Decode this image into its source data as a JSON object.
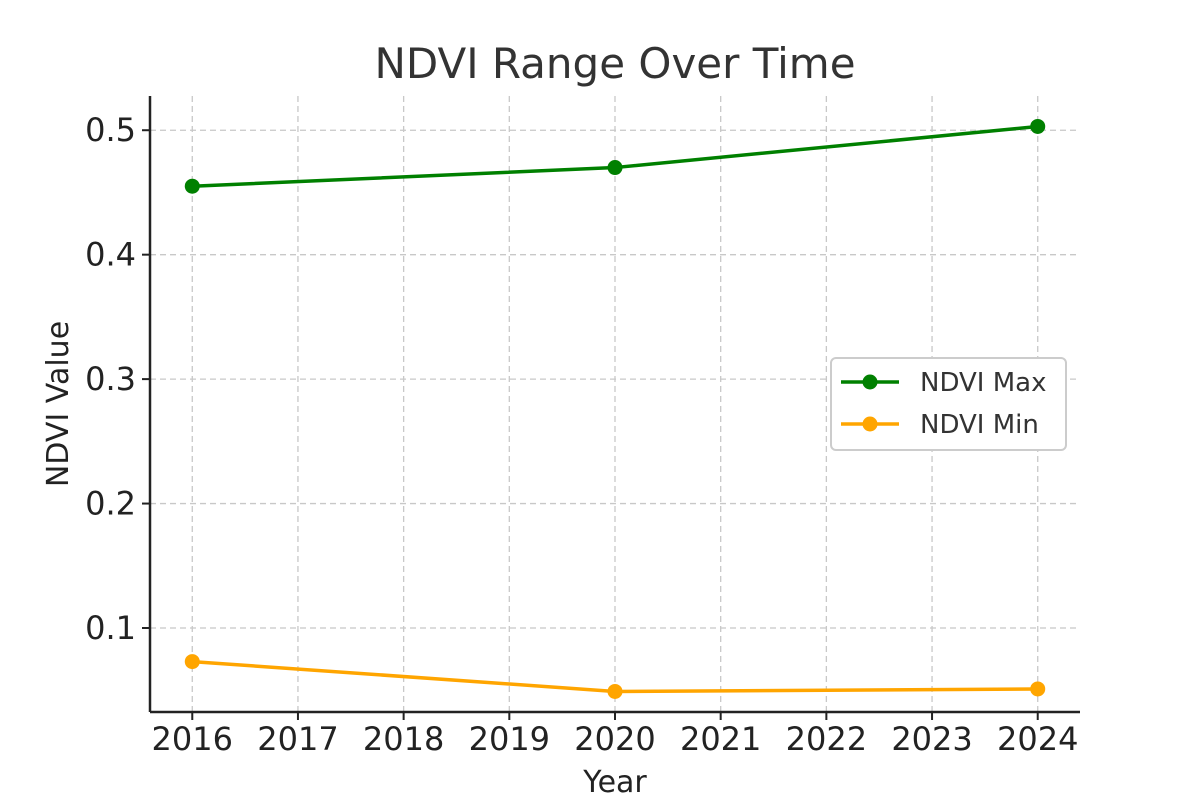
{
  "chart_data": {
    "type": "line",
    "title": "NDVI Range Over Time",
    "xlabel": "Year",
    "ylabel": "NDVI Value",
    "xlim": [
      2015.6,
      2024.4
    ],
    "ylim": [
      0.0325,
      0.5275
    ],
    "x_ticks": [
      2016,
      2017,
      2018,
      2019,
      2020,
      2021,
      2022,
      2023,
      2024
    ],
    "y_ticks": [
      0.1,
      0.2,
      0.3,
      0.4,
      0.5
    ],
    "y_tick_labels": [
      "0.1",
      "0.2",
      "0.3",
      "0.4",
      "0.5"
    ],
    "grid": true,
    "legend_position": "center-right",
    "series": [
      {
        "name": "NDVI Max",
        "color": "#008000",
        "marker": "circle",
        "x": [
          2016,
          2020,
          2024
        ],
        "y": [
          0.455,
          0.47,
          0.503
        ]
      },
      {
        "name": "NDVI Min",
        "color": "#FFA500",
        "marker": "circle",
        "x": [
          2016,
          2020,
          2024
        ],
        "y": [
          0.073,
          0.049,
          0.051
        ]
      }
    ]
  }
}
